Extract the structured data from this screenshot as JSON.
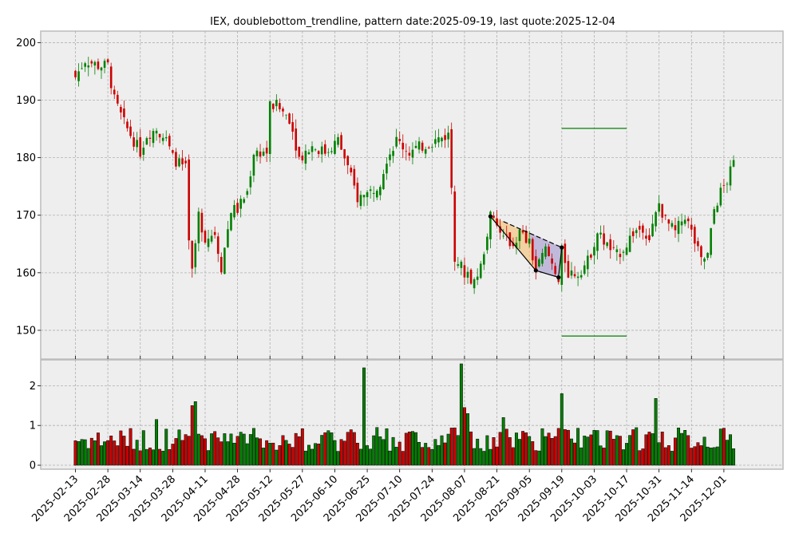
{
  "chart_data": {
    "type": "candlestick",
    "title": "IEX, doublebottom_trendline, pattern date:2025-09-19, last quote:2025-12-04",
    "price_ylim": [
      145,
      202
    ],
    "price_yticks": [
      150,
      160,
      170,
      180,
      190,
      200
    ],
    "volume_ylim": [
      -0.1,
      2.65
    ],
    "volume_yticks": [
      0,
      1,
      2
    ],
    "x_tick_labels": [
      "2025-02-13",
      "2025-02-28",
      "2025-03-14",
      "2025-03-28",
      "2025-04-11",
      "2025-04-28",
      "2025-05-12",
      "2025-05-27",
      "2025-06-10",
      "2025-06-25",
      "2025-07-10",
      "2025-07-24",
      "2025-08-07",
      "2025-08-21",
      "2025-09-05",
      "2025-09-19",
      "2025-10-03",
      "2025-10-17",
      "2025-10-31",
      "2025-11-14",
      "2025-12-01"
    ],
    "colors": {
      "up": "#008000",
      "down": "#cc0000",
      "grid": "#b0b0b0",
      "panel": "#eeeeee",
      "border": "#bcbcbc",
      "target_line": "#008000",
      "pattern_line": "#000000",
      "fill_orange": "#f5c27a",
      "fill_blue": "#a0a8ff"
    },
    "pattern": {
      "points": [
        {
          "date": "2025-08-19",
          "price": 169.8
        },
        {
          "date": "2025-09-09",
          "price": 160.4
        },
        {
          "date": "2025-09-18",
          "price": 159.2
        },
        {
          "date": "2025-09-19",
          "price": 164.4
        }
      ],
      "trendline": [
        {
          "date": "2025-08-25",
          "price": 168.9
        },
        {
          "date": "2025-09-19",
          "price": 164.4
        }
      ],
      "target_upper": {
        "price": 185.1,
        "from": "2025-09-19",
        "to": "2025-10-17"
      },
      "target_lower": {
        "price": 149.0,
        "from": "2025-09-19",
        "to": "2025-10-17"
      }
    }
  }
}
